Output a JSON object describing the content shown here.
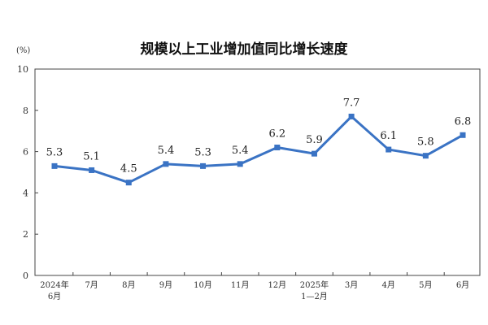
{
  "chart_data": {
    "type": "line",
    "title": "规模以上工业增加值同比增长速度",
    "ylabel": "(%)",
    "xlabel": "",
    "ylim": [
      0,
      10
    ],
    "yticks": [
      "0",
      "2",
      "4",
      "6",
      "8",
      "10"
    ],
    "categories": [
      [
        "2024年",
        "6月"
      ],
      [
        "7月"
      ],
      [
        "8月"
      ],
      [
        "9月"
      ],
      [
        "10月"
      ],
      [
        "11月"
      ],
      [
        "12月"
      ],
      [
        "2025年",
        "1—2月"
      ],
      [
        "3月"
      ],
      [
        "4月"
      ],
      [
        "5月"
      ],
      [
        "6月"
      ]
    ],
    "series": [
      {
        "values": [
          5.3,
          5.1,
          4.5,
          5.4,
          5.3,
          5.4,
          6.2,
          5.9,
          7.7,
          6.1,
          5.8,
          6.8
        ],
        "labels": [
          "5.3",
          "5.1",
          "4.5",
          "5.4",
          "5.3",
          "5.4",
          "6.2",
          "5.9",
          "7.7",
          "6.1",
          "5.8",
          "6.8"
        ],
        "color": "#3a73c4"
      }
    ],
    "grid": false,
    "legend": "none"
  }
}
